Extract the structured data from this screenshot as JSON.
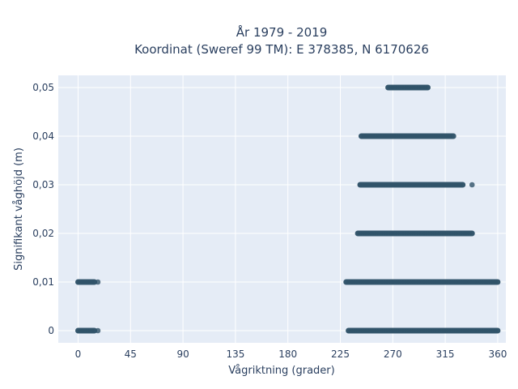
{
  "chart_data": {
    "type": "scatter",
    "title_line1": "År 1979 - 2019",
    "title_line2": "Koordinat (Sweref 99 TM): E 378385, N 6170626",
    "xlabel": "Vågriktning (grader)",
    "ylabel": "Signifikant våghöjd (m)",
    "xlim": [
      -17,
      367
    ],
    "ylim": [
      -0.0025,
      0.0525
    ],
    "x_ticks": [
      0,
      45,
      90,
      135,
      180,
      225,
      270,
      315,
      360
    ],
    "x_tick_labels": [
      "0",
      "45",
      "90",
      "135",
      "180",
      "225",
      "270",
      "315",
      "360"
    ],
    "y_ticks": [
      0,
      0.01,
      0.02,
      0.03,
      0.04,
      0.05
    ],
    "y_tick_labels": [
      "0",
      "0,01",
      "0,02",
      "0,03",
      "0,04",
      "0,05"
    ],
    "grid": true,
    "marker_color": "#2e5168",
    "background_color": "#e5ecf6",
    "bands": [
      {
        "y": 0,
        "segments": [
          [
            0,
            14
          ],
          [
            232,
            360
          ]
        ],
        "outliers": [
          17
        ]
      },
      {
        "y": 0.01,
        "segments": [
          [
            0,
            14
          ],
          [
            230,
            360
          ]
        ],
        "outliers": [
          17
        ]
      },
      {
        "y": 0.02,
        "segments": [
          [
            240,
            338
          ]
        ],
        "outliers": []
      },
      {
        "y": 0.03,
        "segments": [
          [
            242,
            330
          ]
        ],
        "outliers": [
          338
        ]
      },
      {
        "y": 0.04,
        "segments": [
          [
            243,
            322
          ]
        ],
        "outliers": []
      },
      {
        "y": 0.05,
        "segments": [
          [
            266,
            300
          ]
        ],
        "outliers": []
      }
    ]
  }
}
